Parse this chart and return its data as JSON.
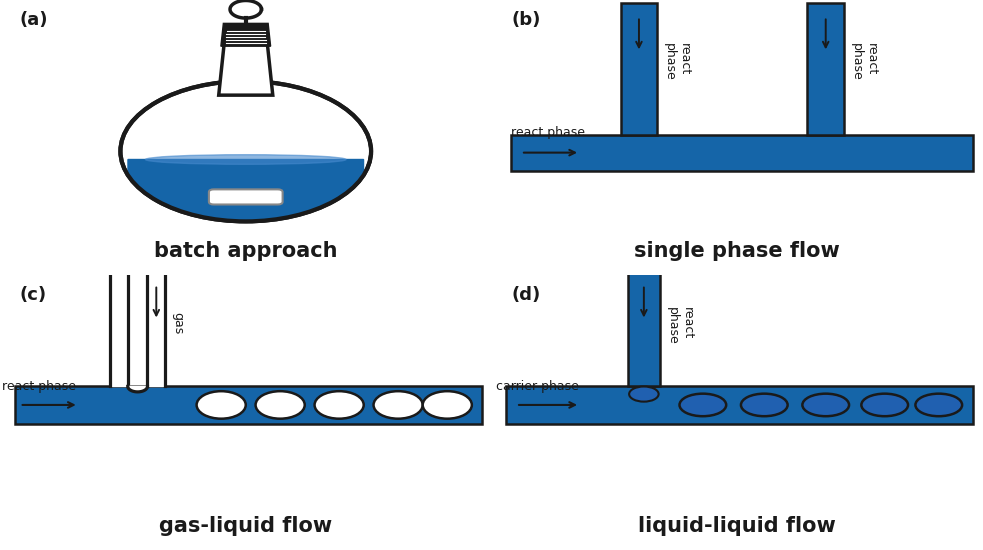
{
  "blue_color": "#1565a8",
  "dark_color": "#1a1a1a",
  "white_color": "#ffffff",
  "bg_color": "#ffffff",
  "label_a": "(a)",
  "label_b": "(b)",
  "label_c": "(c)",
  "label_d": "(d)",
  "title_a": "batch approach",
  "title_b": "single phase flow",
  "title_c": "gas-liquid flow",
  "title_d": "liquid-liquid flow",
  "font_size_label": 13,
  "font_size_title": 15,
  "font_size_annot": 9
}
